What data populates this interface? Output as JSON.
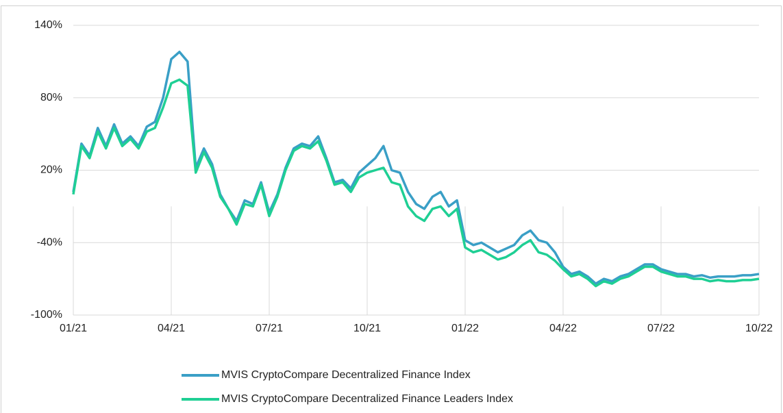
{
  "chart_data": {
    "type": "line",
    "x": [
      0,
      0.25,
      0.5,
      0.75,
      1,
      1.25,
      1.5,
      1.75,
      2,
      2.25,
      2.5,
      2.75,
      3,
      3.25,
      3.5,
      3.75,
      4,
      4.25,
      4.5,
      4.75,
      5,
      5.25,
      5.5,
      5.75,
      6,
      6.25,
      6.5,
      6.75,
      7,
      7.25,
      7.5,
      7.75,
      8,
      8.25,
      8.5,
      8.75,
      9,
      9.25,
      9.5,
      9.75,
      10,
      10.25,
      10.5,
      10.75,
      11,
      11.25,
      11.5,
      11.75,
      12,
      12.25,
      12.5,
      12.75,
      13,
      13.25,
      13.5,
      13.75,
      14,
      14.25,
      14.5,
      14.75,
      15,
      15.25,
      15.5,
      15.75,
      16,
      16.25,
      16.5,
      16.75,
      17,
      17.25,
      17.5,
      17.75,
      18,
      18.25,
      18.5,
      18.75,
      19,
      19.25,
      19.5,
      19.75,
      20,
      20.25,
      20.5,
      20.75,
      21
    ],
    "series": [
      {
        "name": "MVIS CryptoCompare Decentralized Finance Index",
        "color": "#3a9fc6",
        "values": [
          2,
          42,
          32,
          55,
          40,
          58,
          42,
          48,
          40,
          56,
          60,
          80,
          112,
          118,
          110,
          22,
          38,
          25,
          0,
          -12,
          -22,
          -5,
          -8,
          10,
          -15,
          0,
          22,
          38,
          42,
          40,
          48,
          30,
          10,
          12,
          5,
          18,
          24,
          30,
          40,
          20,
          18,
          2,
          -8,
          -12,
          -2,
          2,
          -10,
          -5,
          -38,
          -42,
          -40,
          -44,
          -48,
          -45,
          -42,
          -34,
          -30,
          -38,
          -40,
          -48,
          -60,
          -66,
          -64,
          -68,
          -74,
          -70,
          -72,
          -68,
          -66,
          -62,
          -58,
          -58,
          -62,
          -64,
          -66,
          -66,
          -68,
          -67,
          -69,
          -68,
          -68,
          -68,
          -67,
          -67,
          -66
        ]
      },
      {
        "name": "MVIS CryptoCompare Decentralized Finance Leaders Index",
        "color": "#1fcf94",
        "values": [
          0,
          40,
          30,
          52,
          38,
          55,
          40,
          46,
          38,
          52,
          55,
          72,
          92,
          95,
          90,
          18,
          35,
          22,
          -2,
          -12,
          -25,
          -8,
          -10,
          8,
          -18,
          -2,
          20,
          36,
          40,
          38,
          44,
          28,
          8,
          10,
          2,
          14,
          18,
          20,
          22,
          10,
          8,
          -10,
          -18,
          -22,
          -12,
          -10,
          -18,
          -12,
          -44,
          -48,
          -46,
          -50,
          -54,
          -52,
          -48,
          -42,
          -38,
          -48,
          -50,
          -55,
          -62,
          -68,
          -66,
          -70,
          -76,
          -72,
          -74,
          -70,
          -68,
          -64,
          -60,
          -60,
          -64,
          -66,
          -68,
          -68,
          -70,
          -70,
          -72,
          -71,
          -72,
          -72,
          -71,
          -71,
          -70
        ]
      }
    ],
    "xlim": [
      0,
      21
    ],
    "xticks": [
      {
        "value": 0,
        "label": "01/21"
      },
      {
        "value": 3,
        "label": "04/21"
      },
      {
        "value": 6,
        "label": "07/21"
      },
      {
        "value": 9,
        "label": "10/21"
      },
      {
        "value": 12,
        "label": "01/22"
      },
      {
        "value": 15,
        "label": "04/22"
      },
      {
        "value": 18,
        "label": "07/22"
      },
      {
        "value": 21,
        "label": "10/22"
      }
    ],
    "ylim": [
      -100,
      140
    ],
    "yticks": [
      {
        "value": -100,
        "label": "-100%"
      },
      {
        "value": -40,
        "label": "-40%"
      },
      {
        "value": 20,
        "label": "20%"
      },
      {
        "value": 80,
        "label": "80%"
      },
      {
        "value": 140,
        "label": "140%"
      }
    ],
    "grid": true
  }
}
